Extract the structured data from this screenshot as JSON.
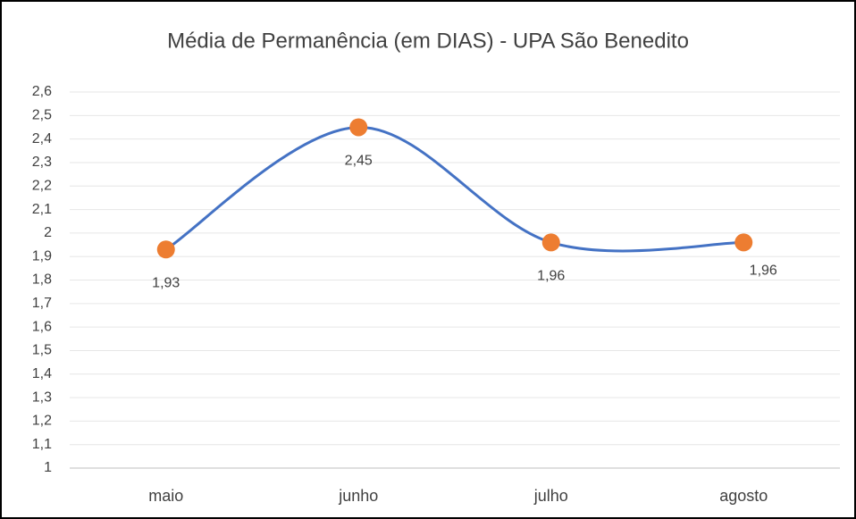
{
  "chart_data": {
    "type": "line",
    "title": "Média de Permanência (em DIAS) - UPA São Benedito",
    "categories": [
      "maio",
      "junho",
      "julho",
      "agosto"
    ],
    "series": [
      {
        "name": "Média de Permanência",
        "color": "#4472c4",
        "marker_color": "#ed7d31",
        "values": [
          1.93,
          2.45,
          1.96,
          1.96
        ],
        "value_labels": [
          "1,93",
          "2,45",
          "1,96",
          "1,96"
        ]
      }
    ],
    "ylim": [
      1,
      2.6
    ],
    "yticks": [
      1,
      {
        "value": 1.1,
        "label": "1,1"
      },
      {
        "value": 1.2,
        "label": "1,2"
      },
      {
        "value": 1.3,
        "label": "1,3"
      },
      {
        "value": 1.4,
        "label": "1,4"
      },
      {
        "value": 1.5,
        "label": "1,5"
      },
      {
        "value": 1.6,
        "label": "1,6"
      },
      {
        "value": 1.7,
        "label": "1,7"
      },
      {
        "value": 1.8,
        "label": "1,8"
      },
      {
        "value": 1.9,
        "label": "1,9"
      },
      2,
      {
        "value": 2.1,
        "label": "2,1"
      },
      {
        "value": 2.2,
        "label": "2,2"
      },
      {
        "value": 2.3,
        "label": "2,3"
      },
      {
        "value": 2.4,
        "label": "2,4"
      },
      {
        "value": 2.5,
        "label": "2,5"
      },
      {
        "value": 2.6,
        "label": "2,6"
      }
    ],
    "grid": true,
    "smooth": true
  }
}
